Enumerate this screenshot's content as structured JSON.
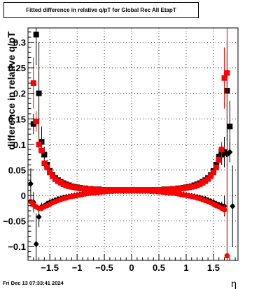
{
  "title": "Fitted difference in relative q/pT for Global Rec All EtapT",
  "footer": "Fri Dec 13 07:33:41 2024",
  "chart_data": {
    "type": "scatter",
    "title": "Fitted difference in relative q/pT for Global Rec All EtapT",
    "xlabel": "η",
    "ylabel": "difference in relative q/pT",
    "xlim": [
      -1.9,
      1.95
    ],
    "ylim": [
      -0.127,
      0.328
    ],
    "xticks": [
      -1.5,
      -1,
      -0.5,
      0,
      0.5,
      1,
      1.5
    ],
    "xtick_labels": [
      "−1.5",
      "−1",
      "−0.5",
      "0",
      "0.5",
      "1",
      "1.5"
    ],
    "yticks": [
      -0.1,
      -0.05,
      0,
      0.05,
      0.1,
      0.15,
      0.2,
      0.25,
      0.3
    ],
    "ytick_labels": [
      "−0.1",
      "−0.05",
      "0",
      "0.05",
      "0.1",
      "0.15",
      "0.2",
      "0.25",
      "0.3"
    ],
    "grid": true,
    "series": [
      {
        "marker": "square",
        "color": "#000000",
        "role": "upper-black",
        "x": [
          -1.8,
          -1.75,
          -1.7,
          -1.65,
          -1.6,
          -1.55,
          -1.5,
          -1.45,
          -1.4,
          -1.35,
          -1.3,
          -1.25,
          -1.2,
          -1.15,
          -1.1,
          -1.05,
          -1.0,
          -0.95,
          -0.9,
          -0.85,
          -0.8,
          -0.75,
          -0.7,
          -0.65,
          -0.6,
          -0.55,
          -0.5,
          -0.45,
          -0.4,
          -0.35,
          -0.3,
          -0.25,
          -0.2,
          -0.15,
          -0.1,
          -0.05,
          0.0,
          0.05,
          0.1,
          0.15,
          0.2,
          0.25,
          0.3,
          0.35,
          0.4,
          0.45,
          0.5,
          0.55,
          0.6,
          0.65,
          0.7,
          0.75,
          0.8,
          0.85,
          0.9,
          0.95,
          1.0,
          1.05,
          1.1,
          1.15,
          1.2,
          1.25,
          1.3,
          1.35,
          1.4,
          1.45,
          1.5,
          1.55,
          1.6,
          1.65,
          1.7,
          1.75,
          1.8
        ],
        "y": [
          0.14,
          0.315,
          0.2,
          0.105,
          0.08,
          0.06,
          0.048,
          0.04,
          0.034,
          0.03,
          0.027,
          0.024,
          0.022,
          0.02,
          0.018,
          0.017,
          0.016,
          0.015,
          0.014,
          0.014,
          0.013,
          0.013,
          0.012,
          0.012,
          0.012,
          0.011,
          0.011,
          0.011,
          0.011,
          0.011,
          0.011,
          0.011,
          0.011,
          0.011,
          0.011,
          0.011,
          0.011,
          0.011,
          0.011,
          0.011,
          0.011,
          0.011,
          0.011,
          0.011,
          0.011,
          0.011,
          0.011,
          0.011,
          0.012,
          0.012,
          0.012,
          0.013,
          0.013,
          0.014,
          0.014,
          0.015,
          0.016,
          0.017,
          0.018,
          0.02,
          0.022,
          0.024,
          0.027,
          0.03,
          0.034,
          0.04,
          0.048,
          0.06,
          0.076,
          0.08,
          0.085,
          0.205,
          0.135
        ],
        "err": [
          0.02,
          0.06,
          0.1,
          0.03,
          0.015,
          0.01,
          0.006,
          0.004,
          0.003,
          0.003,
          0.002,
          0.002,
          0.002,
          0.002,
          0.001,
          0.001,
          0.001,
          0.001,
          0.001,
          0.001,
          0.001,
          0.001,
          0.001,
          0.001,
          0.001,
          0.001,
          0.001,
          0.001,
          0.001,
          0.001,
          0.001,
          0.001,
          0.001,
          0.001,
          0.001,
          0.001,
          0.001,
          0.001,
          0.001,
          0.001,
          0.001,
          0.001,
          0.001,
          0.001,
          0.001,
          0.001,
          0.001,
          0.001,
          0.001,
          0.001,
          0.001,
          0.001,
          0.001,
          0.001,
          0.001,
          0.001,
          0.001,
          0.001,
          0.001,
          0.002,
          0.002,
          0.002,
          0.002,
          0.003,
          0.003,
          0.004,
          0.006,
          0.01,
          0.015,
          0.02,
          0.03,
          0.1,
          0.05
        ]
      },
      {
        "marker": "diamond",
        "color": "#000000",
        "role": "lower-black",
        "x": [
          -1.85,
          -1.8,
          -1.75,
          -1.7,
          -1.65,
          -1.6,
          -1.55,
          -1.5,
          -1.45,
          -1.4,
          -1.35,
          -1.3,
          -1.25,
          -1.2,
          -1.15,
          -1.1,
          -1.05,
          -1.0,
          -0.95,
          -0.9,
          -0.85,
          -0.8,
          -0.75,
          -0.7,
          -0.65,
          -0.6,
          -0.55,
          -0.5,
          -0.45,
          -0.4,
          -0.35,
          -0.3,
          -0.25,
          -0.2,
          -0.15,
          -0.1,
          -0.05,
          0.0,
          0.05,
          0.1,
          0.15,
          0.2,
          0.25,
          0.3,
          0.35,
          0.4,
          0.45,
          0.5,
          0.55,
          0.6,
          0.65,
          0.7,
          0.75,
          0.8,
          0.85,
          0.9,
          0.95,
          1.0,
          1.05,
          1.1,
          1.15,
          1.2,
          1.25,
          1.3,
          1.35,
          1.4,
          1.45,
          1.5,
          1.55,
          1.6,
          1.65,
          1.7,
          1.75,
          1.8,
          1.85
        ],
        "y": [
          0.023,
          -0.013,
          -0.095,
          -0.042,
          -0.022,
          -0.02,
          -0.016,
          -0.013,
          -0.011,
          -0.009,
          -0.007,
          -0.006,
          -0.004,
          -0.003,
          -0.002,
          -0.001,
          0.0,
          0.001,
          0.002,
          0.003,
          0.004,
          0.005,
          0.005,
          0.006,
          0.006,
          0.007,
          0.007,
          0.008,
          0.008,
          0.008,
          0.009,
          0.009,
          0.009,
          0.009,
          0.009,
          0.009,
          0.009,
          0.009,
          0.009,
          0.009,
          0.009,
          0.009,
          0.009,
          0.009,
          0.009,
          0.008,
          0.008,
          0.008,
          0.007,
          0.007,
          0.006,
          0.006,
          0.005,
          0.005,
          0.004,
          0.003,
          0.002,
          0.001,
          0.0,
          -0.001,
          -0.002,
          -0.003,
          -0.004,
          -0.006,
          -0.007,
          -0.009,
          -0.011,
          -0.013,
          -0.016,
          -0.018,
          -0.02,
          -0.021,
          0.08,
          0.085,
          -0.021
        ],
        "err": [
          0.03,
          0.02,
          0.06,
          0.02,
          0.008,
          0.005,
          0.004,
          0.003,
          0.002,
          0.002,
          0.002,
          0.001,
          0.001,
          0.001,
          0.001,
          0.001,
          0.001,
          0.001,
          0.001,
          0.001,
          0.001,
          0.001,
          0.001,
          0.001,
          0.001,
          0.001,
          0.001,
          0.001,
          0.001,
          0.001,
          0.001,
          0.001,
          0.001,
          0.001,
          0.001,
          0.001,
          0.001,
          0.001,
          0.001,
          0.001,
          0.001,
          0.001,
          0.001,
          0.001,
          0.001,
          0.001,
          0.001,
          0.001,
          0.001,
          0.001,
          0.001,
          0.001,
          0.001,
          0.001,
          0.001,
          0.001,
          0.001,
          0.001,
          0.001,
          0.001,
          0.001,
          0.001,
          0.001,
          0.001,
          0.002,
          0.002,
          0.002,
          0.003,
          0.004,
          0.005,
          0.008,
          0.02,
          0.2,
          0.02,
          0.08
        ]
      },
      {
        "marker": "square",
        "color": "#ff0000",
        "role": "upper-red",
        "x": [
          -1.8,
          -1.75,
          -1.7,
          -1.65,
          -1.6,
          -1.55,
          -1.5,
          -1.45,
          -1.4,
          -1.35,
          -1.3,
          -1.25,
          -1.2,
          -1.15,
          -1.1,
          -1.05,
          -1.0,
          -0.95,
          -0.9,
          -0.85,
          -0.8,
          -0.75,
          -0.7,
          -0.65,
          -0.6,
          -0.55,
          -0.5,
          -0.45,
          -0.4,
          -0.35,
          -0.3,
          -0.25,
          -0.2,
          -0.15,
          -0.1,
          -0.05,
          0.0,
          0.05,
          0.1,
          0.15,
          0.2,
          0.25,
          0.3,
          0.35,
          0.4,
          0.45,
          0.5,
          0.55,
          0.6,
          0.65,
          0.7,
          0.75,
          0.8,
          0.85,
          0.9,
          0.95,
          1.0,
          1.05,
          1.1,
          1.15,
          1.2,
          1.25,
          1.3,
          1.35,
          1.4,
          1.45,
          1.5,
          1.55,
          1.6,
          1.65,
          1.7,
          1.75
        ],
        "y": [
          0.22,
          0.145,
          0.1,
          0.088,
          0.063,
          0.055,
          0.045,
          0.038,
          0.032,
          0.028,
          0.025,
          0.022,
          0.02,
          0.018,
          0.017,
          0.016,
          0.015,
          0.014,
          0.014,
          0.013,
          0.013,
          0.012,
          0.012,
          0.012,
          0.011,
          0.011,
          0.011,
          0.011,
          0.011,
          0.011,
          0.011,
          0.011,
          0.011,
          0.011,
          0.011,
          0.011,
          0.011,
          0.011,
          0.011,
          0.011,
          0.011,
          0.011,
          0.011,
          0.011,
          0.011,
          0.011,
          0.011,
          0.011,
          0.011,
          0.012,
          0.012,
          0.012,
          0.013,
          0.013,
          0.014,
          0.014,
          0.015,
          0.016,
          0.017,
          0.018,
          0.02,
          0.022,
          0.025,
          0.028,
          0.032,
          0.038,
          0.045,
          0.055,
          0.07,
          0.09,
          0.23,
          0.24
        ],
        "err": [
          0.05,
          0.02,
          0.015,
          0.01,
          0.008,
          0.006,
          0.004,
          0.003,
          0.003,
          0.002,
          0.002,
          0.002,
          0.002,
          0.001,
          0.001,
          0.001,
          0.001,
          0.001,
          0.001,
          0.001,
          0.001,
          0.001,
          0.001,
          0.001,
          0.001,
          0.001,
          0.001,
          0.001,
          0.001,
          0.001,
          0.001,
          0.001,
          0.001,
          0.001,
          0.001,
          0.001,
          0.001,
          0.001,
          0.001,
          0.001,
          0.001,
          0.001,
          0.001,
          0.001,
          0.001,
          0.001,
          0.001,
          0.001,
          0.001,
          0.001,
          0.001,
          0.001,
          0.001,
          0.001,
          0.001,
          0.001,
          0.001,
          0.001,
          0.001,
          0.001,
          0.002,
          0.002,
          0.002,
          0.002,
          0.003,
          0.003,
          0.004,
          0.006,
          0.008,
          0.015,
          0.06,
          0.1
        ]
      },
      {
        "marker": "circle",
        "color": "#ff0000",
        "role": "lower-red",
        "x": [
          -1.85,
          -1.8,
          -1.75,
          -1.7,
          -1.65,
          -1.6,
          -1.55,
          -1.5,
          -1.45,
          -1.4,
          -1.35,
          -1.3,
          -1.25,
          -1.2,
          -1.15,
          -1.1,
          -1.05,
          -1.0,
          -0.95,
          -0.9,
          -0.85,
          -0.8,
          -0.75,
          -0.7,
          -0.65,
          -0.6,
          -0.55,
          -0.5,
          -0.45,
          -0.4,
          -0.35,
          -0.3,
          -0.25,
          -0.2,
          -0.15,
          -0.1,
          -0.05,
          0.0,
          0.05,
          0.1,
          0.15,
          0.2,
          0.25,
          0.3,
          0.35,
          0.4,
          0.45,
          0.5,
          0.55,
          0.6,
          0.65,
          0.7,
          0.75,
          0.8,
          0.85,
          0.9,
          0.95,
          1.0,
          1.05,
          1.1,
          1.15,
          1.2,
          1.25,
          1.3,
          1.35,
          1.4,
          1.45,
          1.5,
          1.55,
          1.6,
          1.65,
          1.7,
          1.75
        ],
        "y": [
          -0.012,
          -0.018,
          -0.022,
          -0.025,
          -0.025,
          -0.022,
          -0.02,
          -0.017,
          -0.014,
          -0.012,
          -0.01,
          -0.008,
          -0.006,
          -0.005,
          -0.003,
          -0.002,
          -0.001,
          0.0,
          0.001,
          0.002,
          0.003,
          0.004,
          0.005,
          0.005,
          0.006,
          0.006,
          0.007,
          0.007,
          0.008,
          0.008,
          0.008,
          0.009,
          0.009,
          0.009,
          0.009,
          0.009,
          0.009,
          0.009,
          0.009,
          0.009,
          0.009,
          0.009,
          0.009,
          0.009,
          0.008,
          0.008,
          0.008,
          0.007,
          0.007,
          0.006,
          0.006,
          0.005,
          0.005,
          0.004,
          0.003,
          0.002,
          0.001,
          0.0,
          -0.001,
          -0.002,
          -0.003,
          -0.005,
          -0.006,
          -0.008,
          -0.01,
          -0.012,
          -0.014,
          -0.017,
          -0.02,
          -0.022,
          -0.025,
          -0.028,
          -0.118
        ],
        "err": [
          0.01,
          0.008,
          0.006,
          0.005,
          0.004,
          0.003,
          0.003,
          0.002,
          0.002,
          0.002,
          0.001,
          0.001,
          0.001,
          0.001,
          0.001,
          0.001,
          0.001,
          0.001,
          0.001,
          0.001,
          0.001,
          0.001,
          0.001,
          0.001,
          0.001,
          0.001,
          0.001,
          0.001,
          0.001,
          0.001,
          0.001,
          0.001,
          0.001,
          0.001,
          0.001,
          0.001,
          0.001,
          0.001,
          0.001,
          0.001,
          0.001,
          0.001,
          0.001,
          0.001,
          0.001,
          0.001,
          0.001,
          0.001,
          0.001,
          0.001,
          0.001,
          0.001,
          0.001,
          0.001,
          0.001,
          0.001,
          0.001,
          0.001,
          0.001,
          0.001,
          0.001,
          0.001,
          0.001,
          0.001,
          0.001,
          0.002,
          0.002,
          0.002,
          0.003,
          0.003,
          0.005,
          0.01,
          0.2
        ]
      }
    ]
  }
}
